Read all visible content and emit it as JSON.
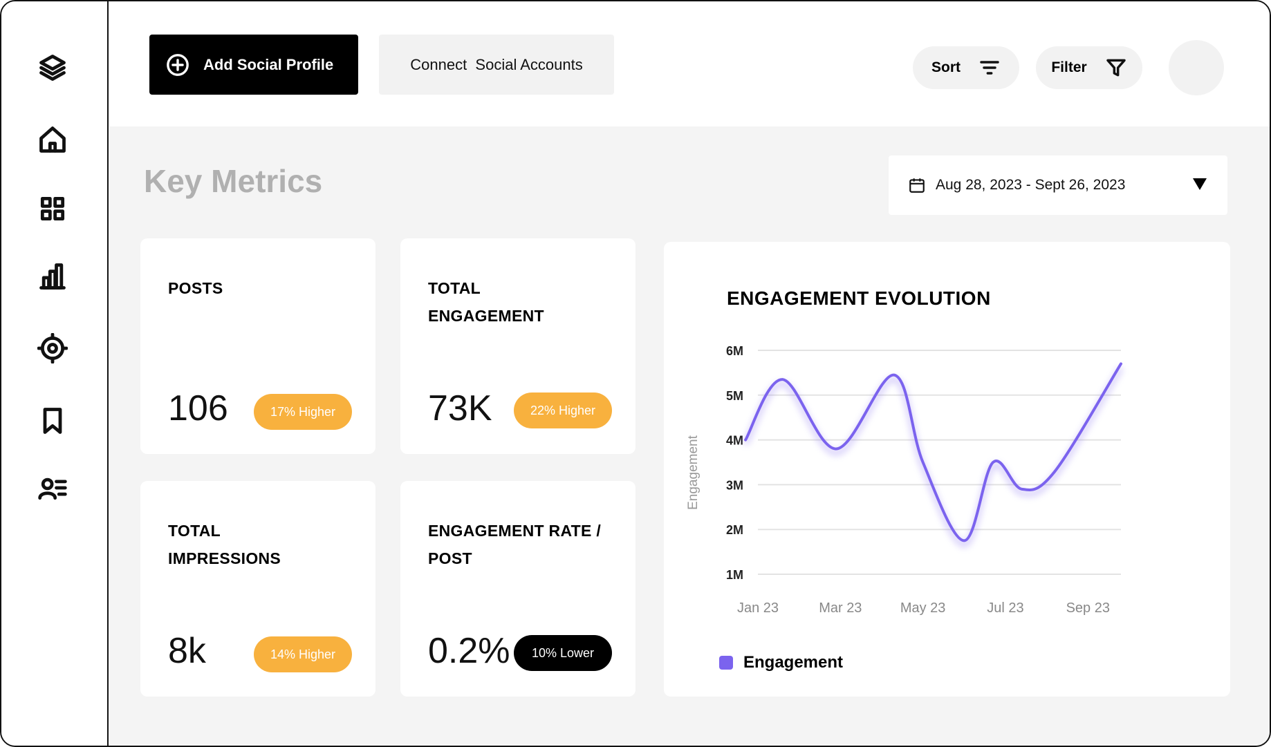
{
  "topbar": {
    "add_profile_label": "Add Social Profile",
    "connect_label": "Connect  Social Accounts",
    "sort_label": "Sort",
    "filter_label": "Filter"
  },
  "main": {
    "title": "Key Metrics",
    "date_range": "Aug 28, 2023 - Sept 26, 2023"
  },
  "cards": [
    {
      "title": "POSTS",
      "value": "106",
      "badge": "17% Higher",
      "badge_color": "#f8b13e"
    },
    {
      "title": "TOTAL ENGAGEMENT",
      "value": "73K",
      "badge": "22% Higher",
      "badge_color": "#f8b13e"
    },
    {
      "title": "TOTAL IMPRESSIONS",
      "value": "8k",
      "badge": "14% Higher",
      "badge_color": "#f8b13e"
    },
    {
      "title": "ENGAGEMENT RATE / POST",
      "value": "0.2%",
      "badge": "10% Lower",
      "badge_color": "#000000"
    }
  ],
  "chart_data": {
    "type": "line",
    "title": "ENGAGEMENT EVOLUTION",
    "xlabel": "",
    "ylabel": "Engagement",
    "x_ticks": [
      "Jan 23",
      "Mar 23",
      "May 23",
      "Jul 23",
      "Sep 23"
    ],
    "y_ticks": [
      "1M",
      "2M",
      "3M",
      "4M",
      "5M",
      "6M"
    ],
    "ylim": [
      1,
      6
    ],
    "xlim": [
      0,
      8.8
    ],
    "series": [
      {
        "name": "Engagement",
        "color": "#7b63ee",
        "x": [
          -0.3,
          0.6,
          1.9,
          3.3,
          4.0,
          5.0,
          5.7,
          6.4,
          7.2,
          8.8
        ],
        "y": [
          4.0,
          5.35,
          3.8,
          5.45,
          3.5,
          1.75,
          3.5,
          2.9,
          3.3,
          5.7
        ]
      }
    ],
    "legend": [
      "Engagement"
    ],
    "grid": true
  },
  "colors": {
    "accent": "#f8b13e",
    "line": "#7b63ee",
    "background": "#f4f4f4"
  }
}
